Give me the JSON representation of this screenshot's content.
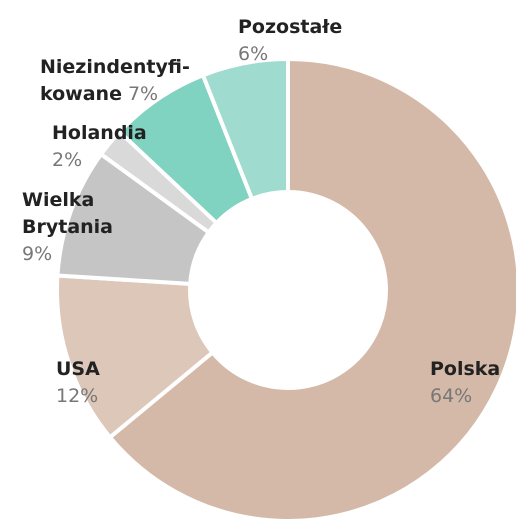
{
  "chart_data": {
    "type": "donut",
    "categories": [
      "Polska",
      "USA",
      "Wielka Brytania",
      "Holandia",
      "Niezindentyfi- kowane",
      "Pozostałe"
    ],
    "values": [
      64,
      12,
      9,
      2,
      7,
      6
    ],
    "value_labels": [
      "64%",
      "12%",
      "9%",
      "2%",
      "7%",
      "6%"
    ],
    "colors": [
      "#d4b9a8",
      "#dcc7b9",
      "#c5c5c5",
      "#d9d9d9",
      "#80d2c1",
      "#a0dbcf"
    ]
  }
}
